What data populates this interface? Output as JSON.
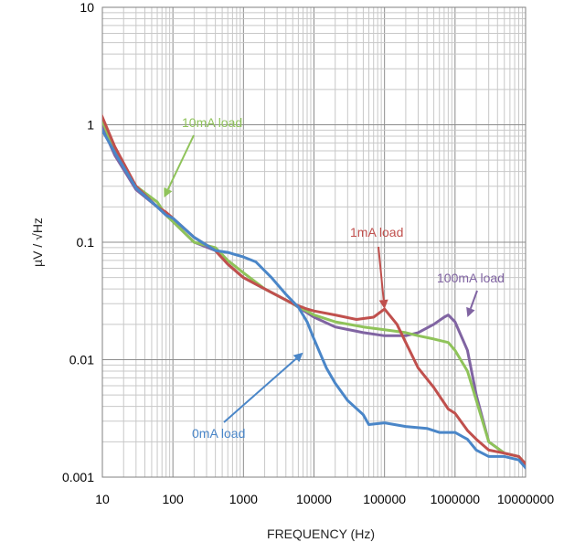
{
  "chart_data": {
    "type": "line",
    "title": "",
    "xlabel": "FREQUENCY (Hz)",
    "ylabel": "µV / √Hz",
    "xscale": "log",
    "yscale": "log",
    "xlim": [
      10,
      10000000
    ],
    "ylim": [
      0.001,
      10
    ],
    "grid": true,
    "legend": "none",
    "xticks": [
      "10",
      "100",
      "1000",
      "10000",
      "100000",
      "1000000",
      "10000000"
    ],
    "yticks": [
      "10",
      "1",
      "0.1",
      "0.01",
      "0.001"
    ],
    "series": [
      {
        "name": "0mA load",
        "color": "#4a86c8",
        "x": [
          9,
          15,
          30,
          60,
          80,
          100,
          200,
          400,
          600,
          1000,
          1500,
          2500,
          4000,
          6000,
          8000,
          10000,
          15000,
          20000,
          30000,
          50000,
          60000,
          100000,
          200000,
          400000,
          600000,
          1000000,
          1500000,
          2000000,
          3000000,
          5000000,
          8000000,
          10000000
        ],
        "y": [
          1.0,
          0.58,
          0.29,
          0.2,
          0.17,
          0.16,
          0.11,
          0.085,
          0.082,
          0.075,
          0.068,
          0.05,
          0.036,
          0.028,
          0.021,
          0.015,
          0.0085,
          0.0063,
          0.0045,
          0.0034,
          0.0028,
          0.0029,
          0.0027,
          0.0026,
          0.0024,
          0.0024,
          0.0021,
          0.0017,
          0.0015,
          0.0015,
          0.0014,
          0.0012
        ]
      },
      {
        "name": "1mA load",
        "color": "#c0504d",
        "x": [
          9,
          15,
          30,
          60,
          80,
          100,
          200,
          400,
          600,
          1000,
          2000,
          5000,
          8000,
          10000,
          20000,
          40000,
          70000,
          100000,
          150000,
          200000,
          300000,
          500000,
          800000,
          1000000,
          1500000,
          2000000,
          3000000,
          5000000,
          8000000,
          10000000
        ],
        "y": [
          1.35,
          0.65,
          0.3,
          0.2,
          0.18,
          0.16,
          0.11,
          0.085,
          0.065,
          0.05,
          0.04,
          0.03,
          0.027,
          0.026,
          0.024,
          0.022,
          0.023,
          0.027,
          0.02,
          0.014,
          0.0085,
          0.0058,
          0.0038,
          0.0035,
          0.0025,
          0.0021,
          0.0017,
          0.0016,
          0.0015,
          0.0013
        ]
      },
      {
        "name": "10mA load",
        "color": "#8fc35a",
        "x": [
          9,
          15,
          30,
          60,
          80,
          100,
          200,
          400,
          600,
          1000,
          2000,
          5000,
          10000,
          20000,
          50000,
          100000,
          200000,
          300000,
          500000,
          800000,
          1000000,
          1500000,
          2000000,
          3000000,
          5000000,
          8000000,
          10000000
        ],
        "y": [
          1.25,
          0.6,
          0.3,
          0.22,
          0.17,
          0.15,
          0.1,
          0.09,
          0.07,
          0.055,
          0.04,
          0.03,
          0.024,
          0.021,
          0.019,
          0.018,
          0.017,
          0.016,
          0.015,
          0.014,
          0.012,
          0.008,
          0.0045,
          0.002,
          0.0016,
          0.0015,
          0.0013
        ]
      },
      {
        "name": "100mA load",
        "color": "#8064a2",
        "x": [
          9,
          15,
          30,
          60,
          80,
          100,
          200,
          400,
          600,
          1000,
          2000,
          5000,
          10000,
          20000,
          50000,
          100000,
          200000,
          300000,
          500000,
          700000,
          800000,
          1000000,
          1500000,
          2000000,
          3000000,
          5000000,
          8000000,
          10000000
        ],
        "y": [
          1.1,
          0.55,
          0.28,
          0.2,
          0.17,
          0.15,
          0.1,
          0.085,
          0.065,
          0.05,
          0.04,
          0.03,
          0.023,
          0.019,
          0.017,
          0.016,
          0.016,
          0.017,
          0.02,
          0.023,
          0.024,
          0.021,
          0.012,
          0.005,
          0.002,
          0.0016,
          0.0015,
          0.0012
        ]
      }
    ],
    "annotations": [
      {
        "text": "10mA load",
        "color": "#8fc35a",
        "point_x": 75,
        "point_y": 0.24
      },
      {
        "text": "1mA load",
        "color": "#c0504d",
        "point_x": 100000,
        "point_y": 0.027
      },
      {
        "text": "100mA load",
        "color": "#8064a2",
        "point_x": 1500000,
        "point_y": 0.023
      },
      {
        "text": "0mA load",
        "color": "#4a86c8",
        "point_x": 7000,
        "point_y": 0.0115
      }
    ]
  }
}
